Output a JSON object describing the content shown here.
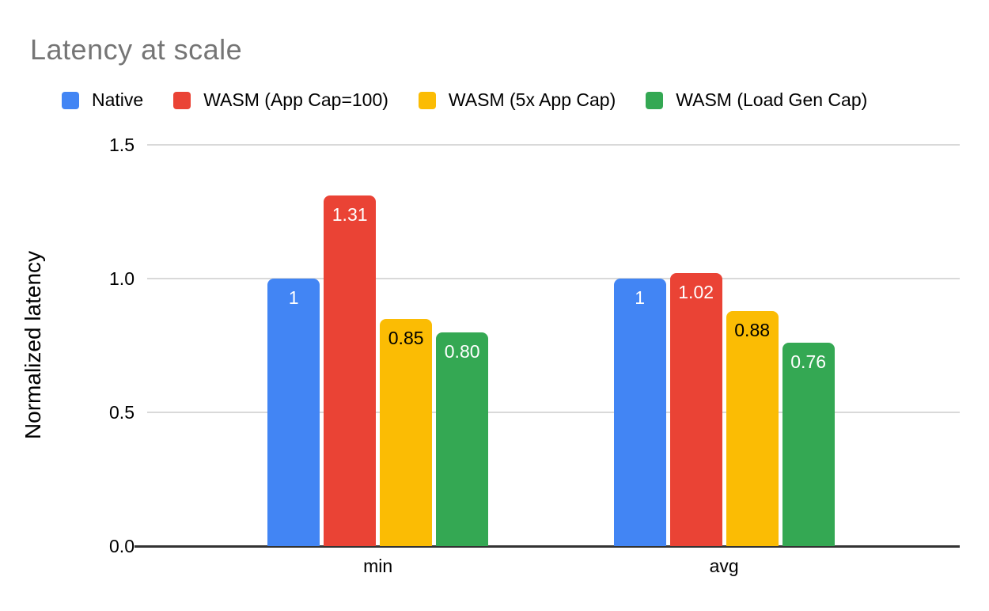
{
  "title": "Latency at scale",
  "colors": {
    "title_text": "#757575",
    "gridline": "#d9d9d9",
    "axis_line": "#333333",
    "label_text": "#000000",
    "background": "#ffffff"
  },
  "chart_data": {
    "type": "bar",
    "title": "Latency at scale",
    "xlabel": "",
    "ylabel": "Normalized latency",
    "categories": [
      "min",
      "avg"
    ],
    "series": [
      {
        "name": "Native",
        "color": "#4285F4",
        "value_label_color": "#ffffff",
        "values": [
          1.0,
          1.0
        ],
        "value_labels": [
          "1",
          "1"
        ]
      },
      {
        "name": "WASM (App Cap=100)",
        "color": "#EA4335",
        "value_label_color": "#ffffff",
        "values": [
          1.31,
          1.02
        ],
        "value_labels": [
          "1.31",
          "1.02"
        ]
      },
      {
        "name": "WASM (5x App Cap)",
        "color": "#FBBC04",
        "value_label_color": "#000000",
        "values": [
          0.85,
          0.88
        ],
        "value_labels": [
          "0.85",
          "0.88"
        ]
      },
      {
        "name": "WASM (Load Gen Cap)",
        "color": "#34A853",
        "value_label_color": "#ffffff",
        "values": [
          0.8,
          0.76
        ],
        "value_labels": [
          "0.80",
          "0.76"
        ]
      }
    ],
    "ylim": [
      0,
      1.5
    ],
    "yticks": [
      {
        "value": 0.0,
        "label": "0.0"
      },
      {
        "value": 0.5,
        "label": "0.5"
      },
      {
        "value": 1.0,
        "label": "1.0"
      },
      {
        "value": 1.5,
        "label": "1.5"
      }
    ],
    "grid": true,
    "legend_position": "top"
  }
}
